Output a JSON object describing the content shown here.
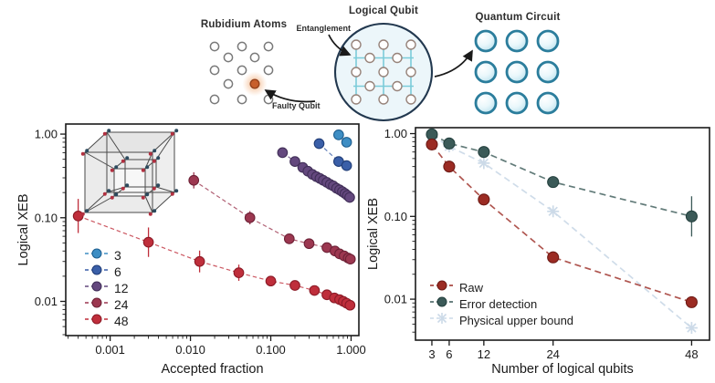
{
  "diagram": {
    "rubidium_atoms_label": "Rubidium Atoms",
    "faulty_qubit_label": "Faulty Qubit",
    "logical_qubit_label": "Logical Qubit",
    "entanglement_label": "Entanglement",
    "quantum_circuit_label": "Quantum Circuit"
  },
  "colors": {
    "qubits_3": "#3e8ec4",
    "qubits_6": "#3a5fa8",
    "qubits_12": "#64487e",
    "qubits_24": "#9c3750",
    "qubits_48": "#bf2e3b",
    "raw": "#9b2b23",
    "error_detection": "#3b5a58",
    "physical_upper_bound": "#ccdae8",
    "faulty_qubit_orange": "#c85f2b",
    "lattice_cyan": "#7bccd9",
    "circuit_ring_blue": "#2b7d9c"
  },
  "chart_data": [
    {
      "id": "accepted-fraction-chart",
      "type": "scatter",
      "title": "",
      "xlabel": "Accepted fraction",
      "ylabel": "Logical XEB",
      "xscale": "log",
      "yscale": "log",
      "xlim": [
        0.00028,
        1.25
      ],
      "ylim": [
        0.0039,
        1.32
      ],
      "grid": false,
      "legend_position": "lower left",
      "xticks": [
        {
          "v": 0.001,
          "label": "0.001"
        },
        {
          "v": 0.01,
          "label": "0.010"
        },
        {
          "v": 0.1,
          "label": "0.100"
        },
        {
          "v": 1.0,
          "label": "1.000"
        }
      ],
      "yticks": [
        {
          "v": 1.0,
          "label": "1.00"
        },
        {
          "v": 0.1,
          "label": "0.10"
        },
        {
          "v": 0.01,
          "label": "0.01"
        }
      ],
      "series": [
        {
          "name": "3",
          "color": "#3e8ec4",
          "edge": "#1d5e8f",
          "marker": "circle",
          "points": [
            [
              0.7,
              0.98
            ],
            [
              0.88,
              0.8
            ]
          ]
        },
        {
          "name": "6",
          "color": "#3a5fa8",
          "edge": "#203d77",
          "marker": "circle",
          "points": [
            [
              0.4,
              0.77
            ],
            [
              0.7,
              0.47
            ],
            [
              0.88,
              0.42
            ]
          ]
        },
        {
          "name": "12",
          "color": "#64487e",
          "edge": "#412f58",
          "marker": "circle",
          "points": [
            [
              0.14,
              0.6
            ],
            [
              0.2,
              0.47
            ],
            [
              0.25,
              0.4
            ],
            [
              0.29,
              0.36
            ],
            [
              0.33,
              0.33
            ],
            [
              0.37,
              0.31
            ],
            [
              0.41,
              0.295
            ],
            [
              0.45,
              0.28
            ],
            [
              0.5,
              0.265
            ],
            [
              0.55,
              0.25
            ],
            [
              0.6,
              0.24
            ],
            [
              0.66,
              0.225
            ],
            [
              0.72,
              0.215
            ],
            [
              0.78,
              0.205
            ],
            [
              0.84,
              0.195
            ],
            [
              0.9,
              0.185
            ],
            [
              0.96,
              0.175
            ]
          ]
        },
        {
          "name": "24",
          "color": "#9c3750",
          "edge": "#6e2237",
          "marker": "circle",
          "points": [
            [
              0.011,
              0.28,
              1.25
            ],
            [
              0.055,
              0.1,
              1.2
            ],
            [
              0.17,
              0.056,
              1.15
            ],
            [
              0.3,
              0.049
            ],
            [
              0.5,
              0.044
            ],
            [
              0.63,
              0.04
            ],
            [
              0.72,
              0.037
            ],
            [
              0.82,
              0.035
            ],
            [
              0.92,
              0.033
            ],
            [
              0.98,
              0.032
            ]
          ]
        },
        {
          "name": "48",
          "color": "#bf2e3b",
          "edge": "#8c1b27",
          "marker": "circle",
          "points": [
            [
              0.0004,
              0.105,
              1.6
            ],
            [
              0.003,
              0.051,
              1.5
            ],
            [
              0.013,
              0.03,
              1.35
            ],
            [
              0.04,
              0.022,
              1.25
            ],
            [
              0.1,
              0.0175,
              1.15
            ],
            [
              0.2,
              0.0155
            ],
            [
              0.35,
              0.0135
            ],
            [
              0.5,
              0.012
            ],
            [
              0.62,
              0.011
            ],
            [
              0.72,
              0.0105
            ],
            [
              0.8,
              0.01
            ],
            [
              0.88,
              0.0095
            ],
            [
              0.97,
              0.009,
              1.15
            ]
          ]
        }
      ]
    },
    {
      "id": "logical-qubits-chart",
      "type": "line",
      "title": "",
      "xlabel": "Number of logical qubits",
      "ylabel": "Logical XEB",
      "xscale": "linear",
      "yscale": "log",
      "xlim": [
        0.16,
        51.1
      ],
      "ylim": [
        0.0032,
        1.18
      ],
      "grid": false,
      "legend_position": "lower left",
      "xticks": [
        {
          "v": 3,
          "label": "3"
        },
        {
          "v": 6,
          "label": "6"
        },
        {
          "v": 12,
          "label": "12"
        },
        {
          "v": 24,
          "label": "24"
        },
        {
          "v": 48,
          "label": "48"
        }
      ],
      "yticks": [
        {
          "v": 1.0,
          "label": "1.00"
        },
        {
          "v": 0.1,
          "label": "0.10"
        },
        {
          "v": 0.01,
          "label": "0.01"
        }
      ],
      "series": [
        {
          "name": "Raw",
          "color": "#9b2b23",
          "edge": "#6d1a15",
          "marker": "circle",
          "points": [
            [
              3,
              0.74,
              1.12
            ],
            [
              6,
              0.4
            ],
            [
              12,
              0.16
            ],
            [
              24,
              0.032
            ],
            [
              48,
              0.0092
            ]
          ]
        },
        {
          "name": "Error detection",
          "color": "#3b5a58",
          "edge": "#24403e",
          "marker": "circle",
          "points": [
            [
              3,
              0.98
            ],
            [
              6,
              0.76
            ],
            [
              12,
              0.6
            ],
            [
              24,
              0.26
            ],
            [
              48,
              0.1,
              1.75
            ]
          ]
        },
        {
          "name": "Physical upper bound",
          "color": "#ccdae8",
          "edge": "#ccdae8",
          "marker": "asterisk",
          "points": [
            [
              3,
              0.95
            ],
            [
              6,
              0.7
            ],
            [
              12,
              0.44
            ],
            [
              24,
              0.115
            ],
            [
              48,
              0.0045
            ]
          ]
        }
      ]
    }
  ]
}
